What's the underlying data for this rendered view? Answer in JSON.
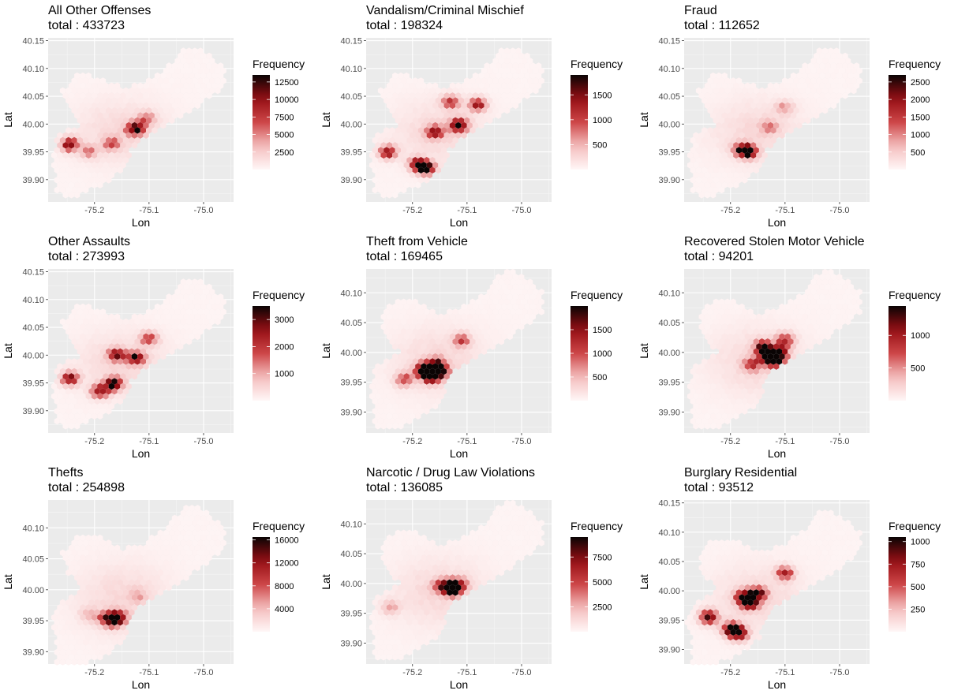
{
  "chart_data": [
    {
      "type": "heatmap",
      "title": "All Other Offenses",
      "total_prefix": "total : ",
      "total": "433723",
      "xlabel": "Lon",
      "ylabel": "Lat",
      "legend_title": "Frequency",
      "x_ticks": [
        -75.2,
        -75.1,
        -75.0
      ],
      "x_tick_labels": [
        "-75.2",
        "-75.1",
        "-75.0"
      ],
      "y_ticks": [
        39.9,
        39.95,
        40.0,
        40.05,
        40.1,
        40.15
      ],
      "y_tick_labels": [
        "39.90",
        "39.95",
        "40.00",
        "40.05",
        "40.10",
        "40.15"
      ],
      "xlim": [
        -75.285,
        -74.945
      ],
      "ylim": [
        39.86,
        40.155
      ],
      "legend_breaks": [
        2500,
        5000,
        7500,
        10000,
        12500
      ],
      "legend_break_labels": [
        "2500",
        "5000",
        "7500",
        "10000",
        "12500"
      ],
      "legend_range": [
        0,
        13500
      ],
      "hotspots": [
        {
          "lon": -75.125,
          "lat": 39.992,
          "value": 13500
        },
        {
          "lon": -75.245,
          "lat": 39.963,
          "value": 11000
        },
        {
          "lon": -75.168,
          "lat": 39.965,
          "value": 6500
        },
        {
          "lon": -75.105,
          "lat": 40.01,
          "value": 5000
        },
        {
          "lon": -75.21,
          "lat": 39.95,
          "value": 5000
        }
      ]
    },
    {
      "type": "heatmap",
      "title": "Vandalism/Criminal Mischief",
      "total_prefix": "total : ",
      "total": "198324",
      "xlabel": "Lon",
      "ylabel": "Lat",
      "legend_title": "Frequency",
      "x_ticks": [
        -75.2,
        -75.1,
        -75.0
      ],
      "x_tick_labels": [
        "-75.2",
        "-75.1",
        "-75.0"
      ],
      "y_ticks": [
        39.9,
        39.95,
        40.0,
        40.05,
        40.1,
        40.15
      ],
      "y_tick_labels": [
        "39.90",
        "39.95",
        "40.00",
        "40.05",
        "40.10",
        "40.15"
      ],
      "xlim": [
        -75.285,
        -74.945
      ],
      "ylim": [
        39.86,
        40.155
      ],
      "legend_breaks": [
        500,
        1000,
        1500
      ],
      "legend_break_labels": [
        "500",
        "1000",
        "1500"
      ],
      "legend_range": [
        0,
        1900
      ],
      "hotspots": [
        {
          "lon": -75.115,
          "lat": 39.998,
          "value": 1900
        },
        {
          "lon": -75.175,
          "lat": 39.92,
          "value": 1850
        },
        {
          "lon": -75.19,
          "lat": 39.928,
          "value": 1600
        },
        {
          "lon": -75.16,
          "lat": 39.985,
          "value": 1500
        },
        {
          "lon": -75.245,
          "lat": 39.95,
          "value": 1400
        },
        {
          "lon": -75.08,
          "lat": 40.035,
          "value": 1300
        },
        {
          "lon": -75.13,
          "lat": 40.04,
          "value": 1200
        }
      ]
    },
    {
      "type": "heatmap",
      "title": "Fraud",
      "total_prefix": "total : ",
      "total": "112652",
      "xlabel": "Lon",
      "ylabel": "Lat",
      "legend_title": "Frequency",
      "x_ticks": [
        -75.2,
        -75.1,
        -75.0
      ],
      "x_tick_labels": [
        "-75.2",
        "-75.1",
        "-75.0"
      ],
      "y_ticks": [
        39.9,
        39.95,
        40.0,
        40.05,
        40.1,
        40.15
      ],
      "y_tick_labels": [
        "39.90",
        "39.95",
        "40.00",
        "40.05",
        "40.10",
        "40.15"
      ],
      "xlim": [
        -75.285,
        -74.945
      ],
      "ylim": [
        39.86,
        40.155
      ],
      "legend_breaks": [
        500,
        1000,
        1500,
        2000,
        2500
      ],
      "legend_break_labels": [
        "500",
        "1000",
        "1500",
        "2000",
        "2500"
      ],
      "legend_range": [
        0,
        2700
      ],
      "hotspots": [
        {
          "lon": -75.168,
          "lat": 39.95,
          "value": 2700
        },
        {
          "lon": -75.18,
          "lat": 39.955,
          "value": 1600
        },
        {
          "lon": -75.13,
          "lat": 39.995,
          "value": 900
        },
        {
          "lon": -75.1,
          "lat": 40.03,
          "value": 800
        }
      ]
    },
    {
      "type": "heatmap",
      "title": "Other Assaults",
      "total_prefix": "total : ",
      "total": "273993",
      "xlabel": "Lon",
      "ylabel": "Lat",
      "legend_title": "Frequency",
      "x_ticks": [
        -75.2,
        -75.1,
        -75.0
      ],
      "x_tick_labels": [
        "-75.2",
        "-75.1",
        "-75.0"
      ],
      "y_ticks": [
        39.9,
        39.95,
        40.0,
        40.05,
        40.1,
        40.15
      ],
      "y_tick_labels": [
        "39.90",
        "39.95",
        "40.00",
        "40.05",
        "40.10",
        "40.15"
      ],
      "xlim": [
        -75.285,
        -74.945
      ],
      "ylim": [
        39.86,
        40.155
      ],
      "legend_breaks": [
        1000,
        2000,
        3000
      ],
      "legend_break_labels": [
        "1000",
        "2000",
        "3000"
      ],
      "legend_range": [
        0,
        3500
      ],
      "hotspots": [
        {
          "lon": -75.165,
          "lat": 39.948,
          "value": 3500
        },
        {
          "lon": -75.125,
          "lat": 39.995,
          "value": 3000
        },
        {
          "lon": -75.245,
          "lat": 39.958,
          "value": 2700
        },
        {
          "lon": -75.19,
          "lat": 39.935,
          "value": 2600
        },
        {
          "lon": -75.16,
          "lat": 40.0,
          "value": 2400
        },
        {
          "lon": -75.1,
          "lat": 40.03,
          "value": 2000
        }
      ]
    },
    {
      "type": "heatmap",
      "title": "Theft from Vehicle",
      "total_prefix": "total : ",
      "total": "169465",
      "xlabel": "Lon",
      "ylabel": "Lat",
      "legend_title": "Frequency",
      "x_ticks": [
        -75.2,
        -75.1,
        -75.0
      ],
      "x_tick_labels": [
        "-75.2",
        "-75.1",
        "-75.0"
      ],
      "y_ticks": [
        39.9,
        39.95,
        40.0,
        40.05,
        40.1
      ],
      "y_tick_labels": [
        "39.90",
        "39.95",
        "40.00",
        "40.05",
        "40.10"
      ],
      "xlim": [
        -75.285,
        -74.945
      ],
      "ylim": [
        39.865,
        40.14
      ],
      "legend_breaks": [
        500,
        1000,
        1500
      ],
      "legend_break_labels": [
        "500",
        "1000",
        "1500"
      ],
      "legend_range": [
        0,
        2000
      ],
      "hotspots": [
        {
          "lon": -75.165,
          "lat": 39.96,
          "value": 2000
        },
        {
          "lon": -75.18,
          "lat": 39.97,
          "value": 1800
        },
        {
          "lon": -75.15,
          "lat": 39.97,
          "value": 1700
        },
        {
          "lon": -75.16,
          "lat": 39.98,
          "value": 1500
        },
        {
          "lon": -75.215,
          "lat": 39.955,
          "value": 1000
        },
        {
          "lon": -75.11,
          "lat": 40.02,
          "value": 900
        }
      ]
    },
    {
      "type": "heatmap",
      "title": "Recovered Stolen Motor Vehicle",
      "total_prefix": "total : ",
      "total": "94201",
      "xlabel": "Lon",
      "ylabel": "Lat",
      "legend_title": "Frequency",
      "x_ticks": [
        -75.2,
        -75.1,
        -75.0
      ],
      "x_tick_labels": [
        "-75.2",
        "-75.1",
        "-75.0"
      ],
      "y_ticks": [
        39.9,
        39.95,
        40.0,
        40.05,
        40.1
      ],
      "y_tick_labels": [
        "39.90",
        "39.95",
        "40.00",
        "40.05",
        "40.10"
      ],
      "xlim": [
        -75.285,
        -74.945
      ],
      "ylim": [
        39.865,
        40.14
      ],
      "legend_breaks": [
        500,
        1000
      ],
      "legend_break_labels": [
        "500",
        "1000"
      ],
      "legend_range": [
        0,
        1450
      ],
      "hotspots": [
        {
          "lon": -75.13,
          "lat": 39.995,
          "value": 1450
        },
        {
          "lon": -75.112,
          "lat": 39.998,
          "value": 1400
        },
        {
          "lon": -75.14,
          "lat": 40.008,
          "value": 1250
        },
        {
          "lon": -75.12,
          "lat": 39.985,
          "value": 1200
        },
        {
          "lon": -75.1,
          "lat": 40.02,
          "value": 900
        },
        {
          "lon": -75.16,
          "lat": 39.98,
          "value": 800
        }
      ]
    },
    {
      "type": "heatmap",
      "title": "Thefts",
      "total_prefix": "total : ",
      "total": "254898",
      "xlabel": "Lon",
      "ylabel": "Lat",
      "legend_title": "Frequency",
      "x_ticks": [
        -75.2,
        -75.1,
        -75.0
      ],
      "x_tick_labels": [
        "-75.2",
        "-75.1",
        "-75.0"
      ],
      "y_ticks": [
        39.9,
        39.95,
        40.0,
        40.05,
        40.1
      ],
      "y_tick_labels": [
        "39.90",
        "39.95",
        "40.00",
        "40.05",
        "40.10"
      ],
      "xlim": [
        -75.285,
        -74.945
      ],
      "ylim": [
        39.88,
        40.145
      ],
      "legend_breaks": [
        4000,
        8000,
        12000,
        16000
      ],
      "legend_break_labels": [
        "4000",
        "8000",
        "12000",
        "16000"
      ],
      "legend_range": [
        0,
        16500
      ],
      "hotspots": [
        {
          "lon": -75.165,
          "lat": 39.953,
          "value": 16500
        },
        {
          "lon": -75.18,
          "lat": 39.953,
          "value": 7000
        },
        {
          "lon": -75.15,
          "lat": 39.955,
          "value": 5000
        },
        {
          "lon": -75.12,
          "lat": 39.99,
          "value": 3500
        },
        {
          "lon": -75.21,
          "lat": 39.96,
          "value": 3000
        }
      ]
    },
    {
      "type": "heatmap",
      "title": "Narcotic / Drug Law Violations",
      "total_prefix": "total : ",
      "total": "136085",
      "xlabel": "Lon",
      "ylabel": "Lat",
      "legend_title": "Frequency",
      "x_ticks": [
        -75.2,
        -75.1,
        -75.0
      ],
      "x_tick_labels": [
        "-75.2",
        "-75.1",
        "-75.0"
      ],
      "y_ticks": [
        39.9,
        39.95,
        40.0,
        40.05,
        40.1
      ],
      "y_tick_labels": [
        "39.90",
        "39.95",
        "40.00",
        "40.05",
        "40.10"
      ],
      "xlim": [
        -75.285,
        -74.945
      ],
      "ylim": [
        39.865,
        40.14
      ],
      "legend_breaks": [
        2500,
        5000,
        7500
      ],
      "legend_break_labels": [
        "2500",
        "5000",
        "7500"
      ],
      "legend_range": [
        0,
        9500
      ],
      "hotspots": [
        {
          "lon": -75.123,
          "lat": 39.993,
          "value": 9500
        },
        {
          "lon": -75.133,
          "lat": 39.993,
          "value": 8500
        },
        {
          "lon": -75.15,
          "lat": 39.995,
          "value": 3500
        },
        {
          "lon": -75.24,
          "lat": 39.96,
          "value": 2500
        },
        {
          "lon": -75.11,
          "lat": 40.0,
          "value": 2500
        }
      ]
    },
    {
      "type": "heatmap",
      "title": "Burglary Residential",
      "total_prefix": "total : ",
      "total": "93512",
      "xlabel": "Lon",
      "ylabel": "Lat",
      "legend_title": "Frequency",
      "x_ticks": [
        -75.2,
        -75.1,
        -75.0
      ],
      "x_tick_labels": [
        "-75.2",
        "-75.1",
        "-75.0"
      ],
      "y_ticks": [
        39.9,
        39.95,
        40.0,
        40.05,
        40.1,
        40.15
      ],
      "y_tick_labels": [
        "39.90",
        "39.95",
        "40.00",
        "40.05",
        "40.10",
        "40.15"
      ],
      "xlim": [
        -75.285,
        -74.945
      ],
      "ylim": [
        39.875,
        40.155
      ],
      "legend_breaks": [
        250,
        500,
        750,
        1000
      ],
      "legend_break_labels": [
        "250",
        "500",
        "750",
        "1000"
      ],
      "legend_range": [
        0,
        1050
      ],
      "hotspots": [
        {
          "lon": -75.185,
          "lat": 39.928,
          "value": 1050
        },
        {
          "lon": -75.165,
          "lat": 39.98,
          "value": 1000
        },
        {
          "lon": -75.175,
          "lat": 39.99,
          "value": 900
        },
        {
          "lon": -75.24,
          "lat": 39.955,
          "value": 900
        },
        {
          "lon": -75.15,
          "lat": 39.995,
          "value": 800
        },
        {
          "lon": -75.1,
          "lat": 40.03,
          "value": 650
        },
        {
          "lon": -75.2,
          "lat": 39.935,
          "value": 850
        }
      ]
    }
  ]
}
